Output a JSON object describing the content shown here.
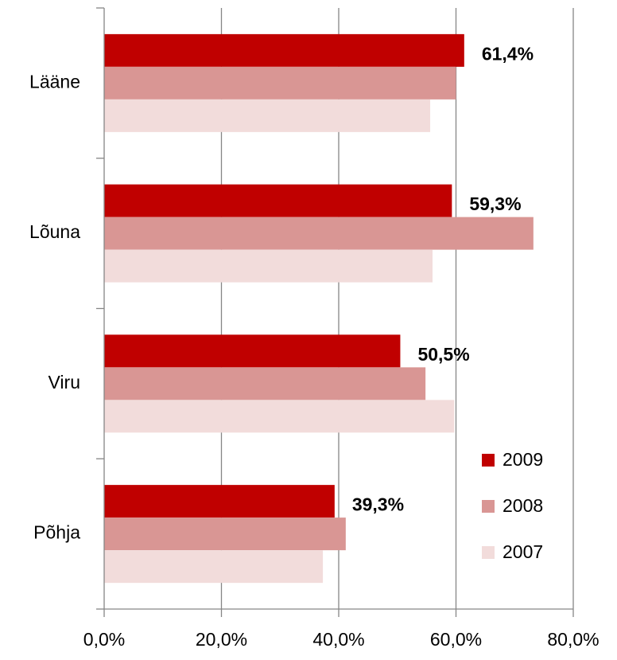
{
  "chart_data": {
    "type": "hbar",
    "categories": [
      "Lääne",
      "Lõuna",
      "Viru",
      "Põhja"
    ],
    "series": [
      {
        "name": "2009",
        "color": "#c00000",
        "values": [
          61.4,
          59.3,
          50.5,
          39.3
        ],
        "value_labels": [
          "61,4%",
          "59,3%",
          "50,5%",
          "39,3%"
        ]
      },
      {
        "name": "2008",
        "color": "#d99694",
        "values": [
          60.0,
          73.2,
          54.8,
          41.2
        ]
      },
      {
        "name": "2007",
        "color": "#f2dcdb",
        "values": [
          55.6,
          56.0,
          59.7,
          37.3
        ]
      }
    ],
    "xlim": [
      0,
      80
    ],
    "xticks": [
      {
        "value": 0,
        "label": "0,0%"
      },
      {
        "value": 20,
        "label": "20,0%"
      },
      {
        "value": 40,
        "label": "40,0%"
      },
      {
        "value": 60,
        "label": "60,0%"
      },
      {
        "value": 80,
        "label": "80,0%"
      }
    ],
    "grid": true,
    "legend": "bottom-right"
  }
}
